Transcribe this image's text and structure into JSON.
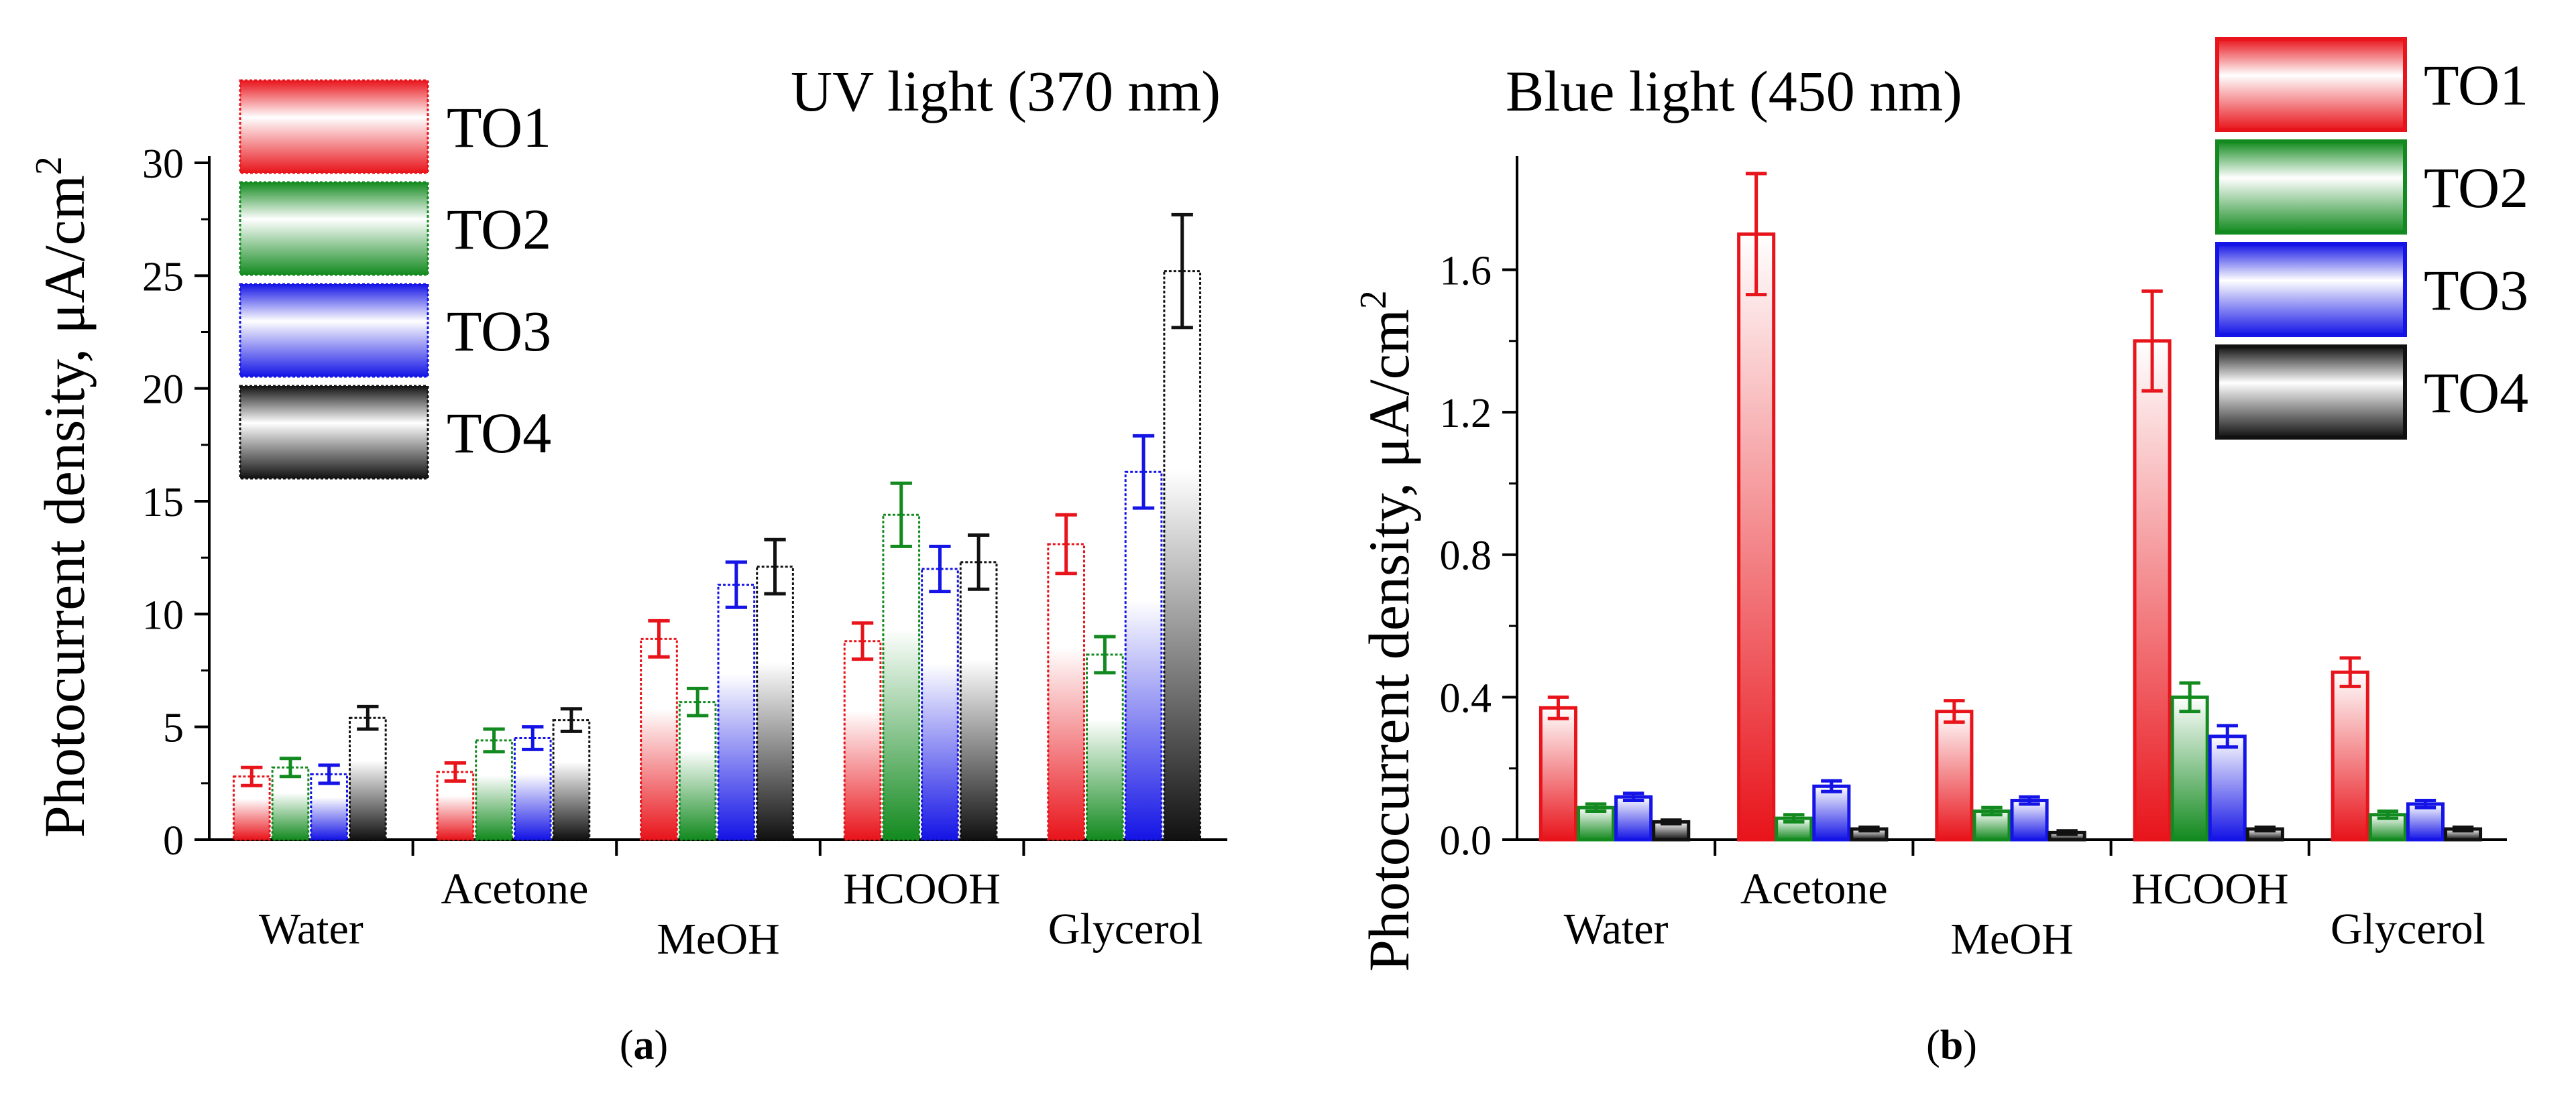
{
  "colors": {
    "TO1": "#e8141b",
    "TO2": "#138a1f",
    "TO3": "#1414e6",
    "TO4": "#111111"
  },
  "captions": [
    {
      "open": "(",
      "letter": "a",
      "close": ")"
    },
    {
      "open": "(",
      "letter": "b",
      "close": ")"
    }
  ],
  "chart_data": [
    {
      "type": "bar",
      "title": "UV light (370 nm)",
      "ylabel": "Photocurrent density, μA/cm",
      "ylabel_superscript": "2",
      "ylim": [
        0,
        30
      ],
      "yticks": [
        "0",
        "5",
        "10",
        "15",
        "20",
        "25",
        "30"
      ],
      "ytick_values": [
        0,
        5,
        10,
        15,
        20,
        25,
        30
      ],
      "categories": [
        "Water",
        "Acetone",
        "MeOH",
        "HCOOH",
        "Glycerol"
      ],
      "legend_position": "top-left",
      "series": [
        {
          "name": "TO1",
          "values": [
            2.8,
            3.0,
            8.9,
            8.8,
            13.1
          ],
          "errors": [
            0.4,
            0.4,
            0.8,
            0.8,
            1.3
          ]
        },
        {
          "name": "TO2",
          "values": [
            3.2,
            4.4,
            6.1,
            14.4,
            8.2
          ],
          "errors": [
            0.4,
            0.5,
            0.6,
            1.4,
            0.8
          ]
        },
        {
          "name": "TO3",
          "values": [
            2.9,
            4.5,
            11.3,
            12.0,
            16.3
          ],
          "errors": [
            0.4,
            0.5,
            1.0,
            1.0,
            1.6
          ]
        },
        {
          "name": "TO4",
          "values": [
            5.4,
            5.3,
            12.1,
            12.3,
            25.2
          ],
          "errors": [
            0.5,
            0.5,
            1.2,
            1.2,
            2.5
          ]
        }
      ]
    },
    {
      "type": "bar",
      "title": "Blue light (450 nm)",
      "ylabel": "Photocurrent density, μA/cm",
      "ylabel_superscript": "2",
      "ylim": [
        0,
        1.9
      ],
      "yticks": [
        "0.0",
        "0.4",
        "0.8",
        "1.2",
        "1.6"
      ],
      "ytick_values": [
        0,
        0.4,
        0.8,
        1.2,
        1.6
      ],
      "categories": [
        "Water",
        "Acetone",
        "MeOH",
        "HCOOH",
        "Glycerol"
      ],
      "legend_position": "top-right",
      "series": [
        {
          "name": "TO1",
          "values": [
            0.37,
            1.7,
            0.36,
            1.4,
            0.47
          ],
          "errors": [
            0.03,
            0.17,
            0.03,
            0.14,
            0.04
          ]
        },
        {
          "name": "TO2",
          "values": [
            0.09,
            0.06,
            0.08,
            0.4,
            0.07
          ],
          "errors": [
            0.01,
            0.01,
            0.01,
            0.04,
            0.01
          ]
        },
        {
          "name": "TO3",
          "values": [
            0.12,
            0.15,
            0.11,
            0.29,
            0.1
          ],
          "errors": [
            0.01,
            0.015,
            0.01,
            0.03,
            0.01
          ]
        },
        {
          "name": "TO4",
          "values": [
            0.05,
            0.03,
            0.02,
            0.03,
            0.03
          ],
          "errors": [
            0.005,
            0.005,
            0.005,
            0.005,
            0.005
          ]
        }
      ]
    }
  ]
}
